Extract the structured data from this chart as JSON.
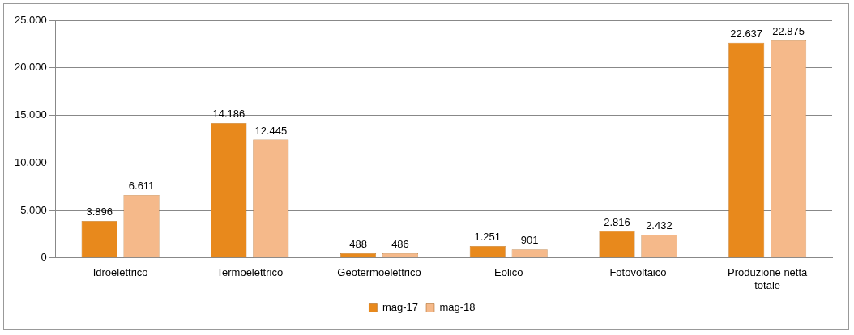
{
  "chart_data": {
    "type": "bar",
    "categories": [
      "Idroelettrico",
      "Termoelettrico",
      "Geotermoelettrico",
      "Eolico",
      "Fotovoltaico",
      "Produzione netta totale"
    ],
    "series": [
      {
        "name": "mag-17",
        "color": "#e8891c",
        "values": [
          3896,
          14186,
          488,
          1251,
          2816,
          22637
        ],
        "value_labels": [
          "3.896",
          "14.186",
          "488",
          "1.251",
          "2.816",
          "22.637"
        ]
      },
      {
        "name": "mag-18",
        "color": "#f5b98a",
        "values": [
          6611,
          12445,
          486,
          901,
          2432,
          22875
        ],
        "value_labels": [
          "6.611",
          "12.445",
          "486",
          "901",
          "2.432",
          "22.875"
        ]
      }
    ],
    "ylim": [
      0,
      25000
    ],
    "yticks": [
      {
        "value": 0,
        "label": "0"
      },
      {
        "value": 5000,
        "label": "5.000"
      },
      {
        "value": 10000,
        "label": "10.000"
      },
      {
        "value": 15000,
        "label": "15.000"
      },
      {
        "value": 20000,
        "label": "20.000"
      },
      {
        "value": 25000,
        "label": "25.000"
      }
    ],
    "grid": "y",
    "legend": "bottom"
  }
}
